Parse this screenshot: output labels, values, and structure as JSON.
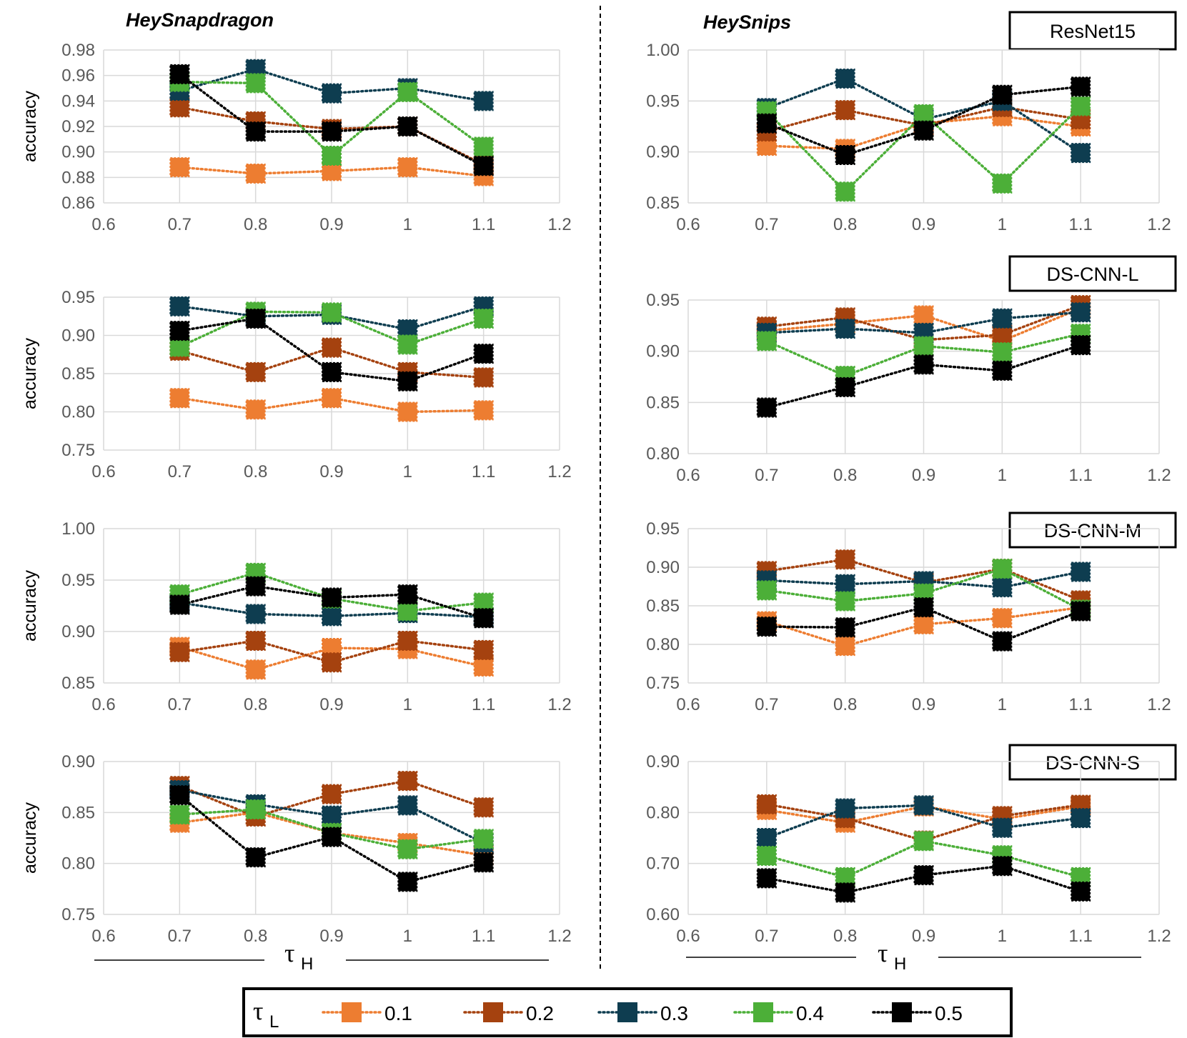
{
  "figure": {
    "dataset_titles": [
      "HeySnapdragon",
      "HeySnips"
    ],
    "model_labels": [
      "ResNet15",
      "DS-CNN-L",
      "DS-CNN-M",
      "DS-CNN-S"
    ],
    "x_axis_label": {
      "symbol": "τ",
      "sub": "H"
    },
    "legend": {
      "title": {
        "symbol": "τ",
        "sub": "L"
      },
      "entries": [
        {
          "label": "0.1",
          "color": "#ED7D31"
        },
        {
          "label": "0.2",
          "color": "#A5420F"
        },
        {
          "label": "0.3",
          "color": "#0E3D50"
        },
        {
          "label": "0.4",
          "color": "#4CAF38"
        },
        {
          "label": "0.5",
          "color": "#000000"
        }
      ]
    }
  },
  "chart_data": [
    {
      "type": "line",
      "dataset": "HeySnapdragon",
      "model": "ResNet15",
      "ylabel": "accuracy",
      "xlabel": "τH",
      "x": [
        0.7,
        0.8,
        0.9,
        1,
        1.1
      ],
      "xlim": [
        0.6,
        1.2
      ],
      "xticks": [
        "0.6",
        "0.7",
        "0.8",
        "0.9",
        "1",
        "1.1",
        "1.2"
      ],
      "ylim": [
        0.86,
        0.98
      ],
      "yticks": [
        "0.86",
        "0.88",
        "0.90",
        "0.92",
        "0.94",
        "0.96",
        "0.98"
      ],
      "series": [
        {
          "name": "0.1",
          "values": [
            0.888,
            0.883,
            0.885,
            0.888,
            0.881
          ]
        },
        {
          "name": "0.2",
          "values": [
            0.935,
            0.924,
            0.918,
            0.92,
            0.89
          ]
        },
        {
          "name": "0.3",
          "values": [
            0.948,
            0.965,
            0.946,
            0.95,
            0.94
          ]
        },
        {
          "name": "0.4",
          "values": [
            0.955,
            0.954,
            0.897,
            0.947,
            0.904
          ]
        },
        {
          "name": "0.5",
          "values": [
            0.961,
            0.916,
            0.916,
            0.92,
            0.889
          ]
        }
      ]
    },
    {
      "type": "line",
      "dataset": "HeySnips",
      "model": "ResNet15",
      "ylabel": "",
      "xlabel": "τH",
      "x": [
        0.7,
        0.8,
        0.9,
        1,
        1.1
      ],
      "xlim": [
        0.6,
        1.2
      ],
      "xticks": [
        "0.6",
        "0.7",
        "0.8",
        "0.9",
        "1",
        "1.1",
        "1.2"
      ],
      "ylim": [
        0.85,
        1.0
      ],
      "yticks": [
        "0.85",
        "0.90",
        "0.95",
        "1.00"
      ],
      "series": [
        {
          "name": "0.1",
          "values": [
            0.906,
            0.903,
            0.928,
            0.935,
            0.925
          ]
        },
        {
          "name": "0.2",
          "values": [
            0.92,
            0.941,
            0.926,
            0.944,
            0.932
          ]
        },
        {
          "name": "0.3",
          "values": [
            0.943,
            0.972,
            0.932,
            0.95,
            0.899
          ]
        },
        {
          "name": "0.4",
          "values": [
            0.94,
            0.861,
            0.937,
            0.869,
            0.945
          ]
        },
        {
          "name": "0.5",
          "values": [
            0.928,
            0.897,
            0.921,
            0.956,
            0.964
          ]
        }
      ]
    },
    {
      "type": "line",
      "dataset": "HeySnapdragon",
      "model": "DS-CNN-L",
      "ylabel": "accuracy",
      "xlabel": "τH",
      "x": [
        0.7,
        0.8,
        0.9,
        1,
        1.1
      ],
      "xlim": [
        0.6,
        1.2
      ],
      "xticks": [
        "0.6",
        "0.7",
        "0.8",
        "0.9",
        "1",
        "1.1",
        "1.2"
      ],
      "ylim": [
        0.75,
        0.95
      ],
      "yticks": [
        "0.75",
        "0.80",
        "0.85",
        "0.90",
        "0.95"
      ],
      "series": [
        {
          "name": "0.1",
          "values": [
            0.818,
            0.803,
            0.818,
            0.8,
            0.802
          ]
        },
        {
          "name": "0.2",
          "values": [
            0.88,
            0.852,
            0.884,
            0.852,
            0.845
          ]
        },
        {
          "name": "0.3",
          "values": [
            0.938,
            0.925,
            0.927,
            0.908,
            0.938
          ]
        },
        {
          "name": "0.4",
          "values": [
            0.885,
            0.931,
            0.93,
            0.888,
            0.922
          ]
        },
        {
          "name": "0.5",
          "values": [
            0.906,
            0.922,
            0.852,
            0.84,
            0.876
          ]
        }
      ]
    },
    {
      "type": "line",
      "dataset": "HeySnips",
      "model": "DS-CNN-L",
      "ylabel": "",
      "xlabel": "τH",
      "x": [
        0.7,
        0.8,
        0.9,
        1,
        1.1
      ],
      "xlim": [
        0.6,
        1.2
      ],
      "xticks": [
        "0.6",
        "0.7",
        "0.8",
        "0.9",
        "1",
        "1.1",
        "1.2"
      ],
      "ylim": [
        0.8,
        0.95
      ],
      "yticks": [
        "0.80",
        "0.85",
        "0.90",
        "0.95"
      ],
      "series": [
        {
          "name": "0.1",
          "values": [
            0.92,
            0.927,
            0.935,
            0.91,
            0.942
          ]
        },
        {
          "name": "0.2",
          "values": [
            0.924,
            0.933,
            0.911,
            0.916,
            0.945
          ]
        },
        {
          "name": "0.3",
          "values": [
            0.918,
            0.922,
            0.918,
            0.932,
            0.938
          ]
        },
        {
          "name": "0.4",
          "values": [
            0.91,
            0.876,
            0.905,
            0.899,
            0.917
          ]
        },
        {
          "name": "0.5",
          "values": [
            0.845,
            0.865,
            0.887,
            0.881,
            0.906
          ]
        }
      ]
    },
    {
      "type": "line",
      "dataset": "HeySnapdragon",
      "model": "DS-CNN-M",
      "ylabel": "accuracy",
      "xlabel": "τH",
      "x": [
        0.7,
        0.8,
        0.9,
        1,
        1.1
      ],
      "xlim": [
        0.6,
        1.2
      ],
      "xticks": [
        "0.6",
        "0.7",
        "0.8",
        "0.9",
        "1",
        "1.1",
        "1.2"
      ],
      "ylim": [
        0.85,
        1.0
      ],
      "yticks": [
        "0.85",
        "0.90",
        "0.95",
        "1.00"
      ],
      "series": [
        {
          "name": "0.1",
          "values": [
            0.885,
            0.863,
            0.884,
            0.883,
            0.866
          ]
        },
        {
          "name": "0.2",
          "values": [
            0.88,
            0.891,
            0.87,
            0.891,
            0.882
          ]
        },
        {
          "name": "0.3",
          "values": [
            0.928,
            0.917,
            0.915,
            0.918,
            0.914
          ]
        },
        {
          "name": "0.4",
          "values": [
            0.936,
            0.957,
            0.932,
            0.92,
            0.928
          ]
        },
        {
          "name": "0.5",
          "values": [
            0.926,
            0.944,
            0.933,
            0.936,
            0.913
          ]
        }
      ]
    },
    {
      "type": "line",
      "dataset": "HeySnips",
      "model": "DS-CNN-M",
      "ylabel": "",
      "xlabel": "τH",
      "x": [
        0.7,
        0.8,
        0.9,
        1,
        1.1
      ],
      "xlim": [
        0.6,
        1.2
      ],
      "xticks": [
        "0.6",
        "0.7",
        "0.8",
        "0.9",
        "1",
        "1.1",
        "1.2"
      ],
      "ylim": [
        0.75,
        0.95
      ],
      "yticks": [
        "0.75",
        "0.80",
        "0.85",
        "0.90",
        "0.95"
      ],
      "series": [
        {
          "name": "0.1",
          "values": [
            0.83,
            0.798,
            0.826,
            0.834,
            0.848
          ]
        },
        {
          "name": "0.2",
          "values": [
            0.895,
            0.91,
            0.88,
            0.898,
            0.857
          ]
        },
        {
          "name": "0.3",
          "values": [
            0.883,
            0.878,
            0.882,
            0.874,
            0.894
          ]
        },
        {
          "name": "0.4",
          "values": [
            0.87,
            0.856,
            0.866,
            0.898,
            0.845
          ]
        },
        {
          "name": "0.5",
          "values": [
            0.823,
            0.822,
            0.848,
            0.804,
            0.843
          ]
        }
      ]
    },
    {
      "type": "line",
      "dataset": "HeySnapdragon",
      "model": "DS-CNN-S",
      "ylabel": "accuracy",
      "xlabel": "τH",
      "x": [
        0.7,
        0.8,
        0.9,
        1,
        1.1
      ],
      "xlim": [
        0.6,
        1.2
      ],
      "xticks": [
        "0.6",
        "0.7",
        "0.8",
        "0.9",
        "1",
        "1.1",
        "1.2"
      ],
      "ylim": [
        0.75,
        0.9
      ],
      "yticks": [
        "0.75",
        "0.80",
        "0.85",
        "0.90"
      ],
      "series": [
        {
          "name": "0.1",
          "values": [
            0.84,
            0.85,
            0.83,
            0.82,
            0.808
          ]
        },
        {
          "name": "0.2",
          "values": [
            0.876,
            0.846,
            0.868,
            0.881,
            0.855
          ]
        },
        {
          "name": "0.3",
          "values": [
            0.872,
            0.858,
            0.847,
            0.857,
            0.82
          ]
        },
        {
          "name": "0.4",
          "values": [
            0.848,
            0.853,
            0.83,
            0.814,
            0.824
          ]
        },
        {
          "name": "0.5",
          "values": [
            0.867,
            0.806,
            0.826,
            0.782,
            0.801
          ]
        }
      ]
    },
    {
      "type": "line",
      "dataset": "HeySnips",
      "model": "DS-CNN-S",
      "ylabel": "",
      "xlabel": "τH",
      "x": [
        0.7,
        0.8,
        0.9,
        1,
        1.1
      ],
      "xlim": [
        0.6,
        1.2
      ],
      "xticks": [
        "0.6",
        "0.7",
        "0.8",
        "0.9",
        "1",
        "1.1",
        "1.2"
      ],
      "ylim": [
        0.6,
        0.9
      ],
      "yticks": [
        "0.60",
        "0.70",
        "0.80",
        "0.90"
      ],
      "series": [
        {
          "name": "0.1",
          "values": [
            0.805,
            0.78,
            0.812,
            0.787,
            0.812
          ]
        },
        {
          "name": "0.2",
          "values": [
            0.816,
            0.789,
            0.745,
            0.793,
            0.815
          ]
        },
        {
          "name": "0.3",
          "values": [
            0.75,
            0.808,
            0.814,
            0.77,
            0.789
          ]
        },
        {
          "name": "0.4",
          "values": [
            0.715,
            0.673,
            0.744,
            0.716,
            0.673
          ]
        },
        {
          "name": "0.5",
          "values": [
            0.671,
            0.643,
            0.677,
            0.695,
            0.645
          ]
        }
      ]
    }
  ]
}
